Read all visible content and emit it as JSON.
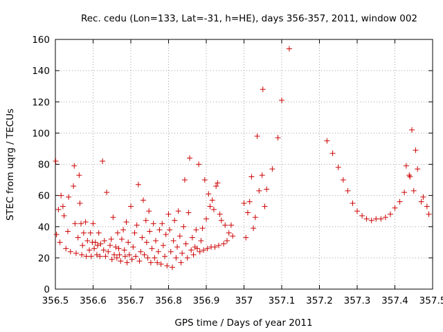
{
  "chart_data": {
    "type": "scatter",
    "title": "Rec. cedu (Lon=133, Lat=-31, h=HE), days 356-357, 2011, window 002",
    "xlabel": "GPS time / Days of year 2011",
    "ylabel": "STEC from uqrg / TECUs",
    "xlim": [
      356.5,
      357.5
    ],
    "ylim": [
      0,
      160
    ],
    "x_ticks": [
      "356.5",
      "356.6",
      "356.7",
      "356.8",
      "356.9",
      "357",
      "357.1",
      "357.2",
      "357.3",
      "357.4",
      "357.5"
    ],
    "y_ticks": [
      "0",
      "20",
      "40",
      "60",
      "80",
      "100",
      "120",
      "140",
      "160"
    ],
    "grid": true,
    "marker": "+",
    "color": "#cc0000",
    "series": [
      {
        "points": [
          [
            356.501,
            82
          ],
          [
            356.503,
            35
          ],
          [
            356.508,
            51
          ],
          [
            356.512,
            30
          ],
          [
            356.515,
            60
          ],
          [
            356.52,
            53
          ],
          [
            356.523,
            47
          ],
          [
            356.528,
            26
          ],
          [
            356.533,
            37
          ],
          [
            356.535,
            59
          ],
          [
            356.54,
            24
          ],
          [
            356.548,
            66
          ],
          [
            356.55,
            79
          ],
          [
            356.552,
            42
          ],
          [
            356.555,
            23
          ],
          [
            356.56,
            33
          ],
          [
            356.563,
            73
          ],
          [
            356.565,
            55
          ],
          [
            356.568,
            42
          ],
          [
            356.57,
            22
          ],
          [
            356.572,
            28
          ],
          [
            356.575,
            36
          ],
          [
            356.58,
            43
          ],
          [
            356.582,
            21
          ],
          [
            356.585,
            31
          ],
          [
            356.59,
            25
          ],
          [
            356.593,
            36
          ],
          [
            356.595,
            21
          ],
          [
            356.598,
            30
          ],
          [
            356.6,
            42
          ],
          [
            356.603,
            26
          ],
          [
            356.606,
            30
          ],
          [
            356.61,
            22
          ],
          [
            356.612,
            28
          ],
          [
            356.615,
            36
          ],
          [
            356.618,
            21
          ],
          [
            356.62,
            29
          ],
          [
            356.625,
            82
          ],
          [
            356.628,
            25
          ],
          [
            356.63,
            31
          ],
          [
            356.633,
            21
          ],
          [
            356.636,
            62
          ],
          [
            356.64,
            24
          ],
          [
            356.645,
            28
          ],
          [
            356.648,
            32
          ],
          [
            356.65,
            19
          ],
          [
            356.653,
            46
          ],
          [
            356.656,
            22
          ],
          [
            356.66,
            27
          ],
          [
            356.663,
            20
          ],
          [
            356.665,
            36
          ],
          [
            356.668,
            26
          ],
          [
            356.67,
            22
          ],
          [
            356.673,
            18
          ],
          [
            356.676,
            32
          ],
          [
            356.68,
            38
          ],
          [
            356.683,
            25
          ],
          [
            356.685,
            21
          ],
          [
            356.688,
            43
          ],
          [
            356.69,
            17
          ],
          [
            356.693,
            30
          ],
          [
            356.696,
            22
          ],
          [
            356.7,
            53
          ],
          [
            356.703,
            19
          ],
          [
            356.706,
            27
          ],
          [
            356.71,
            36
          ],
          [
            356.713,
            21
          ],
          [
            356.716,
            41
          ],
          [
            356.72,
            67
          ],
          [
            356.723,
            18
          ],
          [
            356.726,
            24
          ],
          [
            356.73,
            33
          ],
          [
            356.733,
            57
          ],
          [
            356.736,
            22
          ],
          [
            356.74,
            44
          ],
          [
            356.742,
            30
          ],
          [
            356.745,
            20
          ],
          [
            356.748,
            50
          ],
          [
            356.75,
            37
          ],
          [
            356.753,
            17
          ],
          [
            356.756,
            26
          ],
          [
            356.76,
            42
          ],
          [
            356.763,
            20
          ],
          [
            356.766,
            31
          ],
          [
            356.77,
            17
          ],
          [
            356.773,
            24
          ],
          [
            356.776,
            38
          ],
          [
            356.78,
            16
          ],
          [
            356.783,
            42
          ],
          [
            356.786,
            28
          ],
          [
            356.79,
            21
          ],
          [
            356.793,
            35
          ],
          [
            356.796,
            15
          ],
          [
            356.8,
            48
          ],
          [
            356.803,
            38
          ],
          [
            356.806,
            24
          ],
          [
            356.81,
            14
          ],
          [
            356.813,
            31
          ],
          [
            356.816,
            44
          ],
          [
            356.82,
            20
          ],
          [
            356.823,
            27
          ],
          [
            356.826,
            50
          ],
          [
            356.83,
            34
          ],
          [
            356.833,
            17
          ],
          [
            356.836,
            23
          ],
          [
            356.84,
            40
          ],
          [
            356.843,
            70
          ],
          [
            356.846,
            29
          ],
          [
            356.85,
            20
          ],
          [
            356.853,
            49
          ],
          [
            356.856,
            84
          ],
          [
            356.86,
            25
          ],
          [
            356.863,
            33
          ],
          [
            356.866,
            22
          ],
          [
            356.87,
            27
          ],
          [
            356.873,
            38
          ],
          [
            356.876,
            26
          ],
          [
            356.88,
            80
          ],
          [
            356.883,
            24
          ],
          [
            356.886,
            31
          ],
          [
            356.89,
            39
          ],
          [
            356.893,
            25
          ],
          [
            356.896,
            70
          ],
          [
            356.9,
            45
          ],
          [
            356.903,
            26
          ],
          [
            356.906,
            61
          ],
          [
            356.91,
            53
          ],
          [
            356.913,
            27
          ],
          [
            356.916,
            57
          ],
          [
            356.92,
            51
          ],
          [
            356.923,
            27
          ],
          [
            356.926,
            66
          ],
          [
            356.93,
            68
          ],
          [
            356.933,
            28
          ],
          [
            356.936,
            48
          ],
          [
            356.94,
            44
          ],
          [
            356.946,
            29
          ],
          [
            356.95,
            41
          ],
          [
            356.955,
            31
          ],
          [
            356.96,
            36
          ],
          [
            356.966,
            41
          ],
          [
            356.97,
            34
          ],
          [
            357.0,
            55
          ],
          [
            357.005,
            33
          ],
          [
            357.01,
            49
          ],
          [
            357.015,
            56
          ],
          [
            357.02,
            72
          ],
          [
            357.025,
            39
          ],
          [
            357.03,
            46
          ],
          [
            357.035,
            98
          ],
          [
            357.04,
            63
          ],
          [
            357.048,
            73
          ],
          [
            357.05,
            128
          ],
          [
            357.055,
            53
          ],
          [
            357.06,
            64
          ],
          [
            357.075,
            77
          ],
          [
            357.09,
            97
          ],
          [
            357.1,
            121
          ],
          [
            357.12,
            154
          ],
          [
            357.22,
            95
          ],
          [
            357.235,
            87
          ],
          [
            357.25,
            78
          ],
          [
            357.263,
            70
          ],
          [
            357.275,
            63
          ],
          [
            357.288,
            55
          ],
          [
            357.3,
            50
          ],
          [
            357.313,
            47
          ],
          [
            357.325,
            45
          ],
          [
            357.338,
            44
          ],
          [
            357.35,
            45
          ],
          [
            357.363,
            45
          ],
          [
            357.375,
            46
          ],
          [
            357.388,
            48
          ],
          [
            357.4,
            52
          ],
          [
            357.413,
            56
          ],
          [
            357.425,
            62
          ],
          [
            357.43,
            79
          ],
          [
            357.438,
            73
          ],
          [
            357.44,
            72
          ],
          [
            357.445,
            102
          ],
          [
            357.45,
            63
          ],
          [
            357.455,
            89
          ],
          [
            357.46,
            77
          ],
          [
            357.47,
            56
          ],
          [
            357.475,
            59
          ],
          [
            357.485,
            53
          ],
          [
            357.49,
            48
          ]
        ]
      }
    ]
  }
}
